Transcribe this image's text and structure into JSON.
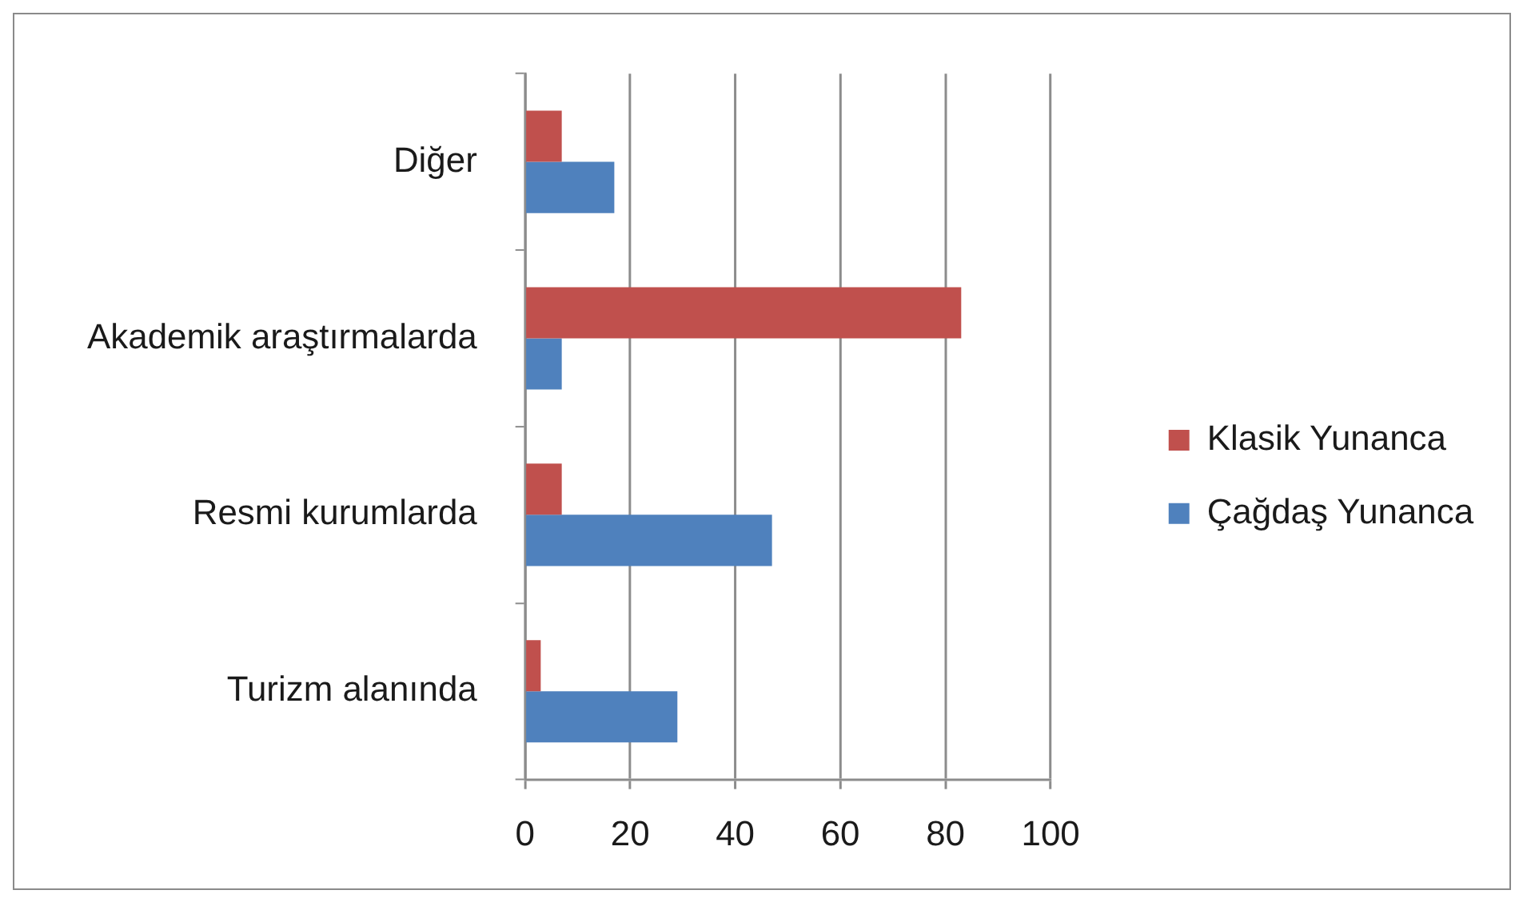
{
  "chart_data": {
    "type": "bar",
    "orientation": "horizontal",
    "categories": [
      "Diğer",
      "Akademik araştırmalarda",
      "Resmi kurumlarda",
      "Turizm alanında"
    ],
    "series": [
      {
        "name": "Klasik Yunanca",
        "color": "#c0504d",
        "values": [
          7,
          83,
          7,
          3
        ]
      },
      {
        "name": "Çağdaş Yunanca",
        "color": "#4f81bd",
        "values": [
          17,
          7,
          47,
          29
        ]
      }
    ],
    "xlim": [
      0,
      100
    ],
    "xticks": [
      0,
      20,
      40,
      60,
      80,
      100
    ],
    "grid": "x",
    "legend": "right"
  }
}
